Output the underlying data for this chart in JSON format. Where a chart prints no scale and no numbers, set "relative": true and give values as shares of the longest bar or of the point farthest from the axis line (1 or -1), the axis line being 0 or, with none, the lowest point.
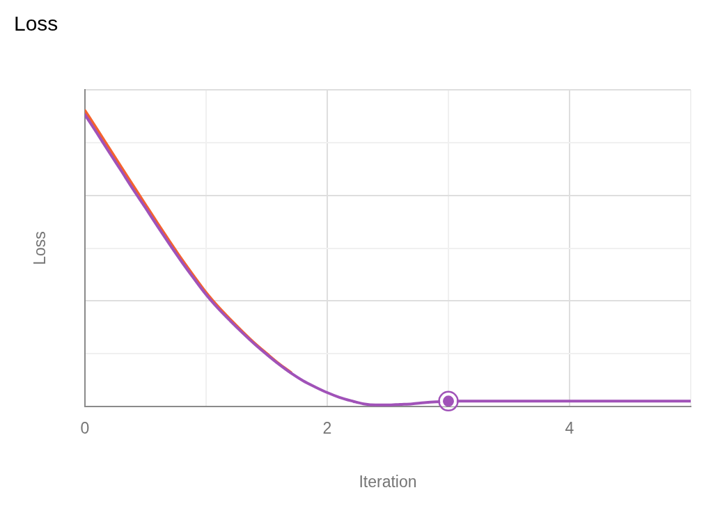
{
  "chart_data": {
    "type": "line",
    "title": "Loss",
    "xlabel": "Iteration",
    "ylabel": "Loss",
    "relative": true,
    "grid": true,
    "xlim": [
      0,
      5
    ],
    "xticks": [
      0,
      {
        "value": 1,
        "label": null
      },
      2,
      {
        "value": 3,
        "label": null
      },
      4,
      {
        "value": 5,
        "label": null
      }
    ],
    "x": [
      0,
      0.1,
      0.2,
      0.3,
      0.4,
      0.5,
      0.6,
      0.7,
      0.8,
      0.9,
      1.0,
      1.1,
      1.2,
      1.3,
      1.4,
      1.5,
      1.6,
      1.7,
      1.8,
      1.9,
      2.0,
      2.1,
      2.2,
      2.3,
      2.4,
      2.5,
      2.6,
      2.7,
      2.8,
      2.9,
      3.0,
      3.25,
      3.5,
      3.75,
      4,
      4.25,
      4.5,
      4.75,
      5
    ],
    "series": [
      {
        "color": "#f4622e",
        "values": [
          1.0,
          0.937,
          0.873,
          0.809,
          0.745,
          0.682,
          0.619,
          0.557,
          0.497,
          0.44,
          0.385,
          0.337,
          0.294,
          0.253,
          0.214,
          0.179,
          0.145,
          0.115,
          null,
          null,
          null,
          null,
          null,
          null,
          null,
          null,
          null,
          null,
          null,
          null,
          null,
          null,
          null,
          null,
          null,
          null,
          null,
          null,
          null
        ]
      },
      {
        "color": "#a052b8",
        "values": [
          0.986,
          0.923,
          0.859,
          0.796,
          0.732,
          0.671,
          0.608,
          0.547,
          0.488,
          0.432,
          0.378,
          0.331,
          0.289,
          0.249,
          0.211,
          0.176,
          0.143,
          0.113,
          0.087,
          0.066,
          0.047,
          0.031,
          0.019,
          0.009,
          0.005,
          0.005,
          0.007,
          0.009,
          0.013,
          0.016,
          0.018,
          0.018,
          0.018,
          0.018,
          0.018,
          0.018,
          0.018,
          0.018,
          0.018
        ]
      },
      {
        "type": "scatter",
        "color": "#a052b8",
        "x": [
          3
        ],
        "values": [
          0.018
        ],
        "marker": "circle"
      }
    ]
  }
}
